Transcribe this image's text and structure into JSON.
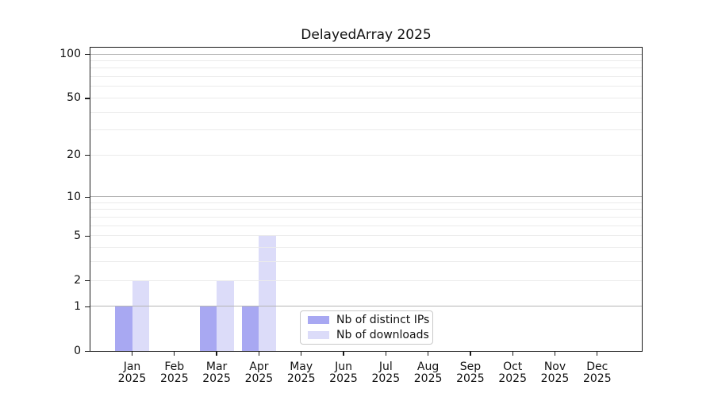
{
  "chart_data": {
    "type": "bar",
    "title": "DelayedArray 2025",
    "categories": [
      "Jan",
      "Feb",
      "Mar",
      "Apr",
      "May",
      "Jun",
      "Jul",
      "Aug",
      "Sep",
      "Oct",
      "Nov",
      "Dec"
    ],
    "year": "2025",
    "series": [
      {
        "name": "Nb of distinct IPs",
        "color": "#a8a8f2",
        "values": [
          1,
          0,
          1,
          1,
          0,
          0,
          0,
          0,
          0,
          0,
          0,
          0
        ]
      },
      {
        "name": "Nb of downloads",
        "color": "#dcdcf9",
        "values": [
          2,
          0,
          2,
          5,
          0,
          0,
          0,
          0,
          0,
          0,
          0,
          0
        ]
      }
    ],
    "yscale": "log1p",
    "ylim": [
      0,
      114
    ],
    "yticks": [
      0,
      1,
      2,
      5,
      10,
      20,
      50,
      100
    ],
    "major_gridlines": [
      1,
      10,
      100
    ],
    "minor_gridlines": [
      2,
      3,
      4,
      5,
      6,
      7,
      8,
      9,
      20,
      30,
      40,
      50,
      60,
      70,
      80,
      90
    ],
    "grid": "horizontal",
    "legend_location": "lower center",
    "colors": {
      "axis": "#1a1a1a",
      "text": "#111111",
      "major_grid": "#b5b5b5",
      "minor_grid": "#ebebeb",
      "legend_border": "#c9c9c9",
      "background": "#ffffff"
    }
  }
}
